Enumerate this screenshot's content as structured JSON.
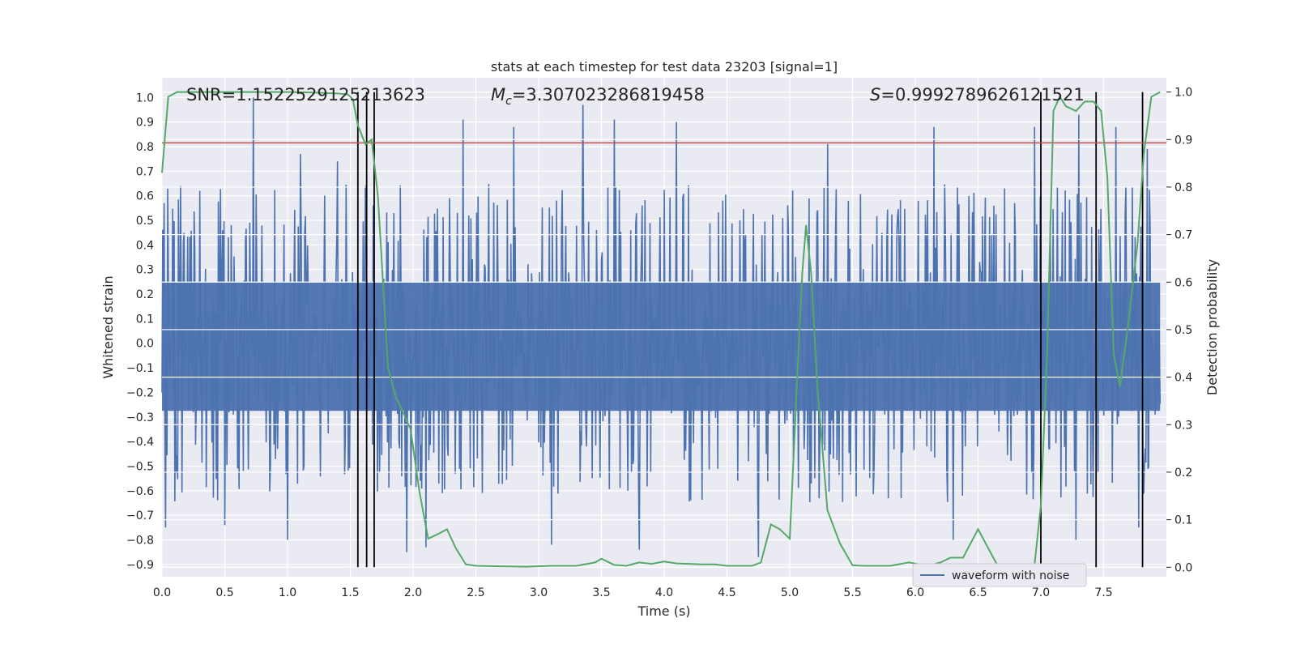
{
  "chart_data": {
    "type": "line",
    "title": "stats at each timestep for test data 23203 [signal=1]",
    "xlabel": "Time (s)",
    "ylabel": "Whitened strain",
    "y2label": "Detection probability",
    "xlim": [
      0.0,
      8.0
    ],
    "ylim": [
      -0.95,
      1.08
    ],
    "y2lim": [
      -0.02,
      1.03
    ],
    "xticks": [
      "0.0",
      "0.5",
      "1.0",
      "1.5",
      "2.0",
      "2.5",
      "3.0",
      "3.5",
      "4.0",
      "4.5",
      "5.0",
      "5.5",
      "6.0",
      "6.5",
      "7.0",
      "7.5"
    ],
    "yticks": [
      "1.0",
      "0.9",
      "0.8",
      "0.7",
      "0.6",
      "0.5",
      "0.4",
      "0.3",
      "0.2",
      "0.1",
      "0.0",
      "−0.1",
      "−0.2",
      "−0.3",
      "−0.4",
      "−0.5",
      "−0.6",
      "−0.7",
      "−0.8",
      "−0.9"
    ],
    "y2ticks": [
      "1.0",
      "0.9",
      "0.8",
      "0.7",
      "0.6",
      "0.5",
      "0.4",
      "0.3",
      "0.2",
      "0.1",
      "0.0"
    ],
    "annotations": {
      "snr": "SNR=1.1522529125213623",
      "mc_symbol": "M",
      "mc_sub": "c",
      "mc_value": "=3.307023286819458",
      "s_symbol": "S",
      "s_value": "=0.9992789626121521"
    },
    "legend": {
      "position": "bottom-right",
      "label": "waveform with noise"
    },
    "threshold_line": {
      "y": 0.815,
      "color": "#c44e52"
    },
    "vertical_lines": [
      1.56,
      1.63,
      1.69,
      7.0,
      7.44,
      7.81
    ],
    "waveform": {
      "name": "waveform with noise",
      "color": "#4c72b0",
      "n_samples": 1400,
      "peaks_up": [
        [
          0.15,
          0.64
        ],
        [
          0.3,
          0.62
        ],
        [
          0.73,
          1.0
        ],
        [
          1.1,
          0.77
        ],
        [
          1.4,
          0.74
        ],
        [
          1.62,
          0.64
        ],
        [
          2.4,
          0.91
        ],
        [
          2.8,
          0.88
        ],
        [
          3.35,
          0.97
        ],
        [
          3.6,
          0.91
        ],
        [
          4.1,
          0.9
        ],
        [
          5.3,
          0.81
        ],
        [
          6.15,
          0.88
        ],
        [
          6.95,
          0.88
        ],
        [
          7.3,
          0.93
        ],
        [
          7.6,
          0.88
        ],
        [
          7.85,
          0.79
        ]
      ],
      "peaks_down": [
        [
          0.03,
          -0.75
        ],
        [
          0.5,
          -0.74
        ],
        [
          1.0,
          -0.8
        ],
        [
          1.95,
          -0.85
        ],
        [
          2.1,
          -0.83
        ],
        [
          3.1,
          -0.82
        ],
        [
          3.8,
          -0.84
        ],
        [
          4.75,
          -0.87
        ],
        [
          6.3,
          -0.8
        ],
        [
          7.28,
          -0.8
        ],
        [
          7.78,
          -0.75
        ]
      ],
      "envelope": 0.5
    },
    "probability": {
      "name": "Detection probability",
      "color": "#55a868",
      "x": [
        0.0,
        0.05,
        0.12,
        0.2,
        0.4,
        0.6,
        0.8,
        1.0,
        1.2,
        1.4,
        1.48,
        1.52,
        1.56,
        1.62,
        1.67,
        1.72,
        1.76,
        1.8,
        1.86,
        1.93,
        1.98,
        2.05,
        2.12,
        2.2,
        2.27,
        2.34,
        2.42,
        2.5,
        2.7,
        2.9,
        3.1,
        3.3,
        3.45,
        3.5,
        3.6,
        3.7,
        3.8,
        3.9,
        4.0,
        4.1,
        4.2,
        4.3,
        4.4,
        4.5,
        4.6,
        4.7,
        4.77,
        4.85,
        4.92,
        5.0,
        5.06,
        5.1,
        5.13,
        5.17,
        5.22,
        5.3,
        5.4,
        5.5,
        5.6,
        5.7,
        5.8,
        5.95,
        6.1,
        6.2,
        6.28,
        6.38,
        6.5,
        6.65,
        6.8,
        6.95,
        7.0,
        7.05,
        7.1,
        7.15,
        7.2,
        7.28,
        7.35,
        7.42,
        7.48,
        7.53,
        7.58,
        7.63,
        7.7,
        7.77,
        7.82,
        7.88,
        7.95
      ],
      "y": [
        0.83,
        0.99,
        1.0,
        1.0,
        1.0,
        1.0,
        1.0,
        1.0,
        0.999,
        0.997,
        0.995,
        0.985,
        0.93,
        0.89,
        0.9,
        0.78,
        0.6,
        0.42,
        0.36,
        0.32,
        0.29,
        0.16,
        0.06,
        0.07,
        0.08,
        0.04,
        0.006,
        0.003,
        0.002,
        0.001,
        0.003,
        0.003,
        0.01,
        0.018,
        0.005,
        0.003,
        0.01,
        0.007,
        0.012,
        0.008,
        0.007,
        0.006,
        0.006,
        0.003,
        0.003,
        0.003,
        0.01,
        0.09,
        0.08,
        0.06,
        0.4,
        0.62,
        0.72,
        0.62,
        0.38,
        0.12,
        0.05,
        0.004,
        0.003,
        0.003,
        0.003,
        0.01,
        0.003,
        0.01,
        0.02,
        0.02,
        0.08,
        0.006,
        0.003,
        0.006,
        0.13,
        0.45,
        0.96,
        0.99,
        0.97,
        0.96,
        0.98,
        0.98,
        0.96,
        0.82,
        0.45,
        0.38,
        0.52,
        0.68,
        0.87,
        0.99,
        1.0
      ]
    }
  }
}
